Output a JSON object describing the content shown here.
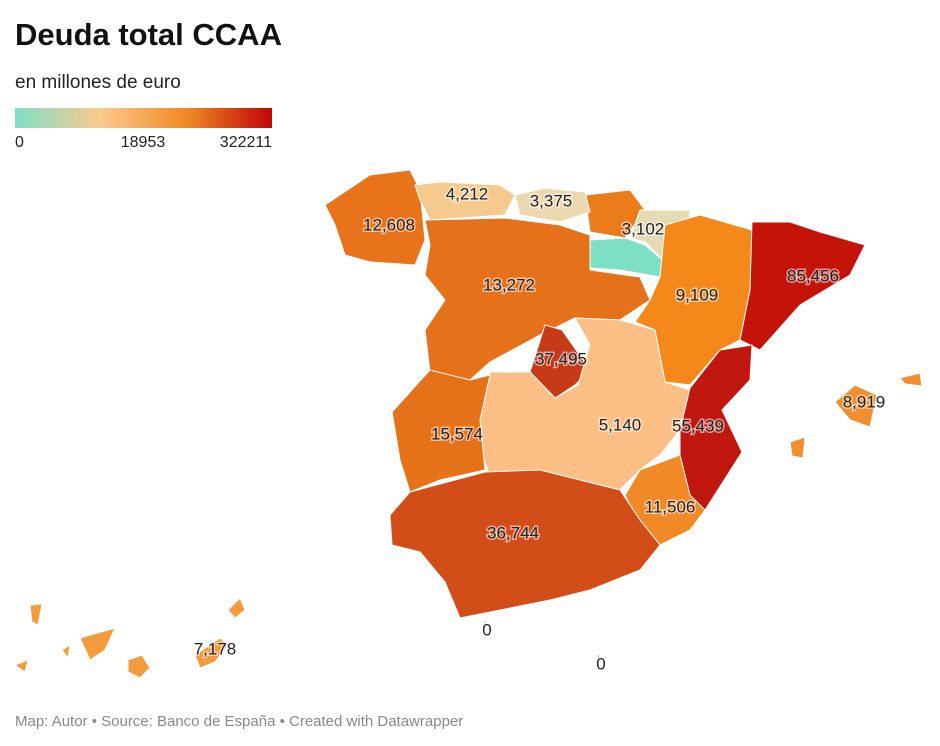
{
  "title": "Deuda total CCAA",
  "subtitle": "en millones de euro",
  "legend": {
    "ticks": [
      0,
      18953,
      322211
    ],
    "colors": [
      "#7ee0c5",
      "#fbc98e",
      "#f08a24",
      "#c0050a"
    ]
  },
  "regions": {
    "values": [
      12608,
      4212,
      3375,
      3102,
      13272,
      9109,
      85456,
      37495,
      5140,
      15574,
      55439,
      11506,
      36744,
      8919,
      7178,
      0,
      0
    ],
    "value_labels": [
      "12,608",
      "4,212",
      "3,375",
      "3,102",
      "13,272",
      "9,109",
      "85,456",
      "37,495",
      "5,140",
      "15,574",
      "55,439",
      "11,506",
      "36,744",
      "8,919",
      "7,178",
      "0",
      "0"
    ],
    "colors": [
      "#e8731a",
      "#f6c98f",
      "#ecd8b0",
      "#e4dab4",
      "#e5721a",
      "#f4891a",
      "#c41308",
      "#c63a17",
      "#fbbf86",
      "#e57118",
      "#c0170e",
      "#f08a27",
      "#d24d17",
      "#f08e30",
      "#f39b3d",
      "#7ee0c5",
      "#7ee0c5"
    ]
  },
  "footer": "Map: Autor • Source: Banco de España • Created with Datawrapper"
}
